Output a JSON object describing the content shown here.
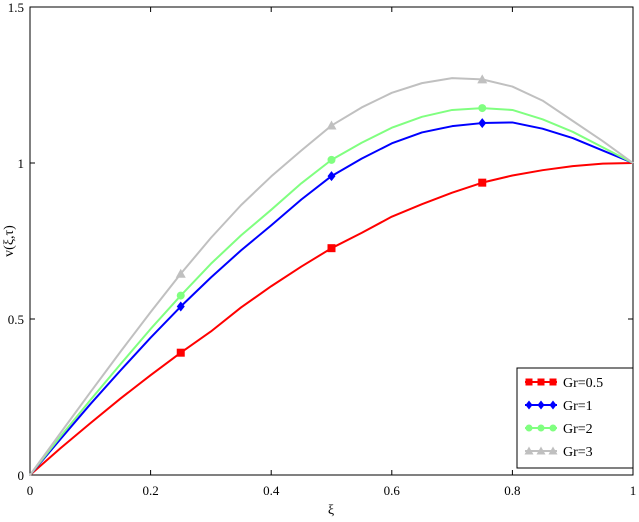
{
  "chart_data": {
    "type": "line",
    "title": "",
    "xlabel": "ξ",
    "ylabel": "v(ξ,τ)",
    "xlim": [
      0,
      1
    ],
    "ylim": [
      0,
      1.5
    ],
    "xticks": [
      0,
      0.2,
      0.4,
      0.6,
      0.8,
      1
    ],
    "xtick_labels": [
      "0",
      "0.2",
      "0.4",
      "0.6",
      "0.8",
      "1"
    ],
    "yticks": [
      0,
      0.5,
      1,
      1.5
    ],
    "ytick_labels": [
      "0",
      "0.5",
      "1",
      "1.5"
    ],
    "grid": false,
    "legend_position": "bottom-right",
    "x": [
      0,
      0.05,
      0.1,
      0.15,
      0.2,
      0.25,
      0.3,
      0.35,
      0.4,
      0.45,
      0.5,
      0.55,
      0.6,
      0.65,
      0.7,
      0.75,
      0.8,
      0.85,
      0.9,
      0.95,
      1
    ],
    "series": [
      {
        "name": "Gr=0.5",
        "color": "#ff0000",
        "marker": "square",
        "marker_x": [
          0.25,
          0.5,
          0.75
        ],
        "values": [
          0,
          0.085,
          0.166,
          0.245,
          0.32,
          0.392,
          0.46,
          0.537,
          0.605,
          0.668,
          0.727,
          0.776,
          0.828,
          0.868,
          0.905,
          0.937,
          0.96,
          0.977,
          0.99,
          0.998,
          1.0
        ]
      },
      {
        "name": "Gr=1",
        "color": "#0000ff",
        "marker": "diamond",
        "marker_x": [
          0.25,
          0.5,
          0.75
        ],
        "values": [
          0,
          0.114,
          0.227,
          0.335,
          0.44,
          0.54,
          0.633,
          0.72,
          0.8,
          0.883,
          0.958,
          1.014,
          1.063,
          1.098,
          1.118,
          1.128,
          1.13,
          1.11,
          1.08,
          1.04,
          1.0
        ]
      },
      {
        "name": "Gr=2",
        "color": "#80ff80",
        "marker": "circle",
        "marker_x": [
          0.25,
          0.5,
          0.75
        ],
        "values": [
          0,
          0.122,
          0.24,
          0.355,
          0.468,
          0.575,
          0.677,
          0.768,
          0.85,
          0.935,
          1.01,
          1.065,
          1.113,
          1.148,
          1.17,
          1.176,
          1.17,
          1.14,
          1.1,
          1.05,
          1.0
        ]
      },
      {
        "name": "Gr=3",
        "color": "#c0c0c0",
        "marker": "triangle",
        "marker_x": [
          0.25,
          0.5,
          0.75
        ],
        "values": [
          0,
          0.133,
          0.265,
          0.395,
          0.522,
          0.645,
          0.76,
          0.865,
          0.957,
          1.04,
          1.12,
          1.178,
          1.225,
          1.256,
          1.272,
          1.268,
          1.245,
          1.2,
          1.135,
          1.07,
          1.0
        ]
      }
    ]
  }
}
